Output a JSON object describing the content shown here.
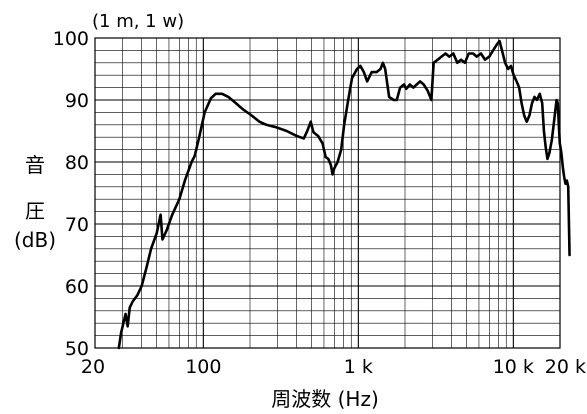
{
  "chart_data": {
    "type": "line",
    "title": "",
    "annotation": "(1 m, 1 w)",
    "xlabel": "周波数 (Hz)",
    "ylabel": "音 圧 (dB)",
    "ylabel_lines": [
      "音",
      "圧",
      "(dB)"
    ],
    "x_scale": "log",
    "xlim": [
      20,
      20000
    ],
    "ylim": [
      50,
      100
    ],
    "grid": true,
    "legend": "none",
    "x_ticks": [
      {
        "value": 20,
        "label": "20"
      },
      {
        "value": 100,
        "label": "100"
      },
      {
        "value": 1000,
        "label": "1 k"
      },
      {
        "value": 10000,
        "label": "10 k"
      },
      {
        "value": 20000,
        "label": "20 k"
      }
    ],
    "y_ticks": [
      {
        "value": 50,
        "label": "50"
      },
      {
        "value": 60,
        "label": "60"
      },
      {
        "value": 70,
        "label": "70"
      },
      {
        "value": 80,
        "label": "80"
      },
      {
        "value": 90,
        "label": "90"
      },
      {
        "value": 100,
        "label": "100"
      }
    ],
    "series": [
      {
        "color": "#000000",
        "points": [
          [
            28.5,
            50
          ],
          [
            29.5,
            52.5
          ],
          [
            30.5,
            54
          ],
          [
            31.5,
            55.5
          ],
          [
            32.5,
            53.5
          ],
          [
            33.5,
            56.5
          ],
          [
            35,
            57.5
          ],
          [
            37.5,
            58.5
          ],
          [
            40,
            60
          ],
          [
            43,
            63
          ],
          [
            46,
            66
          ],
          [
            50,
            68.5
          ],
          [
            53,
            71.5
          ],
          [
            54.5,
            67.5
          ],
          [
            58,
            69
          ],
          [
            63,
            71.5
          ],
          [
            70,
            74
          ],
          [
            76,
            77
          ],
          [
            84,
            80
          ],
          [
            88,
            81
          ],
          [
            94,
            84
          ],
          [
            102,
            88
          ],
          [
            112,
            90.3
          ],
          [
            120,
            91
          ],
          [
            132,
            91
          ],
          [
            145,
            90.5
          ],
          [
            162,
            89.5
          ],
          [
            180,
            88.5
          ],
          [
            205,
            87.5
          ],
          [
            230,
            86.5
          ],
          [
            255,
            86
          ],
          [
            295,
            85.6
          ],
          [
            345,
            85
          ],
          [
            400,
            84.2
          ],
          [
            445,
            83.8
          ],
          [
            468,
            85
          ],
          [
            493,
            86.5
          ],
          [
            513,
            84.8
          ],
          [
            550,
            84.2
          ],
          [
            588,
            83
          ],
          [
            615,
            80.8
          ],
          [
            640,
            80.5
          ],
          [
            665,
            79.5
          ],
          [
            682,
            78
          ],
          [
            700,
            79
          ],
          [
            735,
            80
          ],
          [
            775,
            82
          ],
          [
            810,
            86
          ],
          [
            860,
            90
          ],
          [
            910,
            93.5
          ],
          [
            980,
            95
          ],
          [
            1030,
            95.5
          ],
          [
            1085,
            94.5
          ],
          [
            1140,
            93
          ],
          [
            1220,
            94.5
          ],
          [
            1310,
            94.5
          ],
          [
            1390,
            95
          ],
          [
            1440,
            96
          ],
          [
            1490,
            95
          ],
          [
            1580,
            90.5
          ],
          [
            1690,
            90
          ],
          [
            1770,
            90
          ],
          [
            1860,
            92
          ],
          [
            1970,
            92.5
          ],
          [
            2040,
            91.8
          ],
          [
            2150,
            92.5
          ],
          [
            2260,
            92
          ],
          [
            2380,
            92.5
          ],
          [
            2500,
            93
          ],
          [
            2640,
            92.5
          ],
          [
            2800,
            91.5
          ],
          [
            2960,
            90
          ],
          [
            3060,
            96
          ],
          [
            3250,
            96.5
          ],
          [
            3440,
            97
          ],
          [
            3650,
            97.5
          ],
          [
            3860,
            97
          ],
          [
            4100,
            97.5
          ],
          [
            4350,
            96
          ],
          [
            4600,
            96.5
          ],
          [
            4870,
            96
          ],
          [
            5150,
            97.5
          ],
          [
            5500,
            97.5
          ],
          [
            5800,
            97
          ],
          [
            6180,
            97.5
          ],
          [
            6560,
            96.5
          ],
          [
            7000,
            97
          ],
          [
            7400,
            98
          ],
          [
            7850,
            99
          ],
          [
            8150,
            99.5
          ],
          [
            8450,
            98
          ],
          [
            8850,
            96
          ],
          [
            9250,
            95
          ],
          [
            9650,
            95.5
          ],
          [
            10050,
            94
          ],
          [
            10500,
            93
          ],
          [
            10900,
            92
          ],
          [
            11300,
            89.5
          ],
          [
            11750,
            87.5
          ],
          [
            12200,
            86.5
          ],
          [
            12700,
            87.5
          ],
          [
            13200,
            89.5
          ],
          [
            13700,
            90.5
          ],
          [
            14200,
            90
          ],
          [
            14800,
            91
          ],
          [
            15350,
            89.5
          ],
          [
            15750,
            85
          ],
          [
            16150,
            82.5
          ],
          [
            16600,
            80.5
          ],
          [
            17100,
            81.5
          ],
          [
            17700,
            83.5
          ],
          [
            18200,
            86
          ],
          [
            18600,
            88
          ],
          [
            19000,
            90
          ],
          [
            19350,
            89.5
          ],
          [
            19650,
            86
          ],
          [
            19950,
            83
          ],
          [
            20400,
            81.5
          ],
          [
            20900,
            79
          ],
          [
            21300,
            77.5
          ],
          [
            21700,
            76.5
          ],
          [
            22150,
            77
          ],
          [
            22600,
            76
          ],
          [
            23050,
            65
          ]
        ]
      }
    ]
  }
}
